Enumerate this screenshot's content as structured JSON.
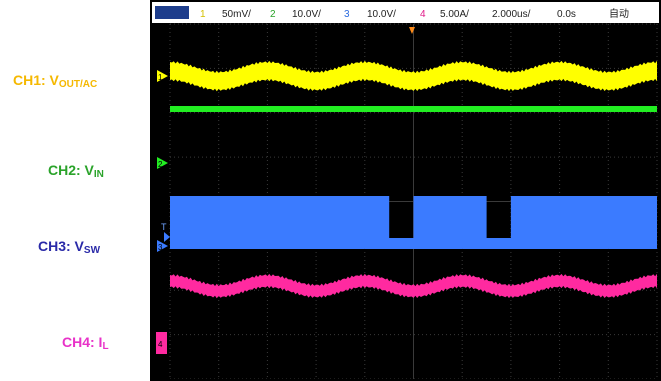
{
  "labels": {
    "ch1": {
      "main": "CH1: V",
      "sub": "OUT/AC"
    },
    "ch2": {
      "main": "CH2: V",
      "sub": "IN"
    },
    "ch3": {
      "main": "CH3: V",
      "sub": "SW"
    },
    "ch4": {
      "main": "CH4: I",
      "sub": "L"
    }
  },
  "header": {
    "ch1_num": "1",
    "ch1_scale": "50mV/",
    "ch2_num": "2",
    "ch2_scale": "10.0V/",
    "ch3_num": "3",
    "ch3_scale": "10.0V/",
    "ch4_num": "4",
    "ch4_scale": "5.00A/",
    "timebase": "2.000us/",
    "delay": "0.0s",
    "trigger_mode": "自动"
  },
  "markers": {
    "ch1": "1",
    "ch2": "2",
    "ch3": "3",
    "trigger": "T",
    "ch4": "4"
  },
  "colors": {
    "ch1": "#ffff00",
    "ch2": "#22ee22",
    "ch3": "#3b7bff",
    "ch4": "#ff2aa0",
    "grid": "#3a3a3a",
    "trigger": "#ff8c1a"
  },
  "chart_data": {
    "type": "line",
    "xlim": [
      -10,
      10
    ],
    "grid": true,
    "series": [
      {
        "name": "CH1: VOUT/AC",
        "x": [
          -10,
          -8,
          -6,
          -4,
          -2,
          0,
          2,
          4,
          6,
          8,
          10
        ],
        "y": [
          0.5,
          -0.5,
          0.5,
          -0.5,
          0.5,
          -0.5,
          0.5,
          -0.5,
          0.5,
          -0.5,
          0.5
        ]
      },
      {
        "name": "CH2: VIN",
        "x": [
          -10,
          10
        ],
        "y": [
          0,
          0
        ]
      },
      {
        "name": "CH3: VSW",
        "x": [
          -10,
          -6,
          -5,
          -3,
          -2,
          -1,
          0,
          1,
          2,
          3,
          4,
          5,
          6,
          7,
          8,
          10
        ],
        "y": [
          0.5,
          0.5,
          0.5,
          0.5,
          0.5,
          -0.5,
          0.5,
          0.5,
          0.5,
          -0.5,
          0.5,
          0.5,
          0.5,
          0.5,
          0.5,
          0.5
        ]
      },
      {
        "name": "CH4: IL",
        "x": [
          -10,
          -8,
          -6,
          -4,
          -2,
          0,
          2,
          4,
          6,
          8,
          10
        ],
        "y": [
          0.5,
          -0.5,
          0.5,
          -0.5,
          0.5,
          -0.5,
          0.5,
          -0.5,
          0.5,
          -0.5,
          0.5
        ]
      }
    ]
  }
}
